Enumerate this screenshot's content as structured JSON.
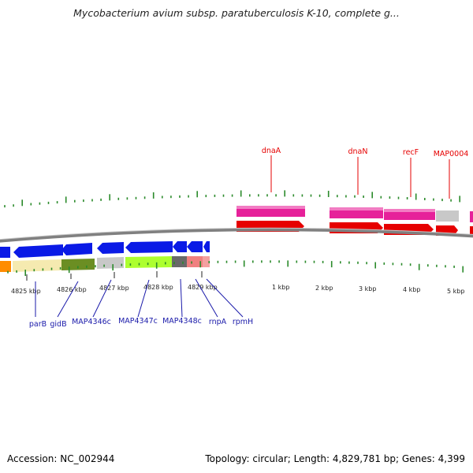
{
  "title": "Mycobacterium avium subsp. paratuberculosis K-10, complete g...",
  "footer": {
    "accession": "Accession: NC_002944",
    "summary": "Topology: circular; Length: 4,829,781 bp; Genes: 4,399"
  },
  "scale_labels": [
    "4825 kbp",
    "4826 kbp",
    "4827 kbp",
    "4828 kbp",
    "4829 kbp",
    "1 kbp",
    "2 kbp",
    "3 kbp",
    "4 kbp",
    "5 kbp"
  ],
  "genes_top": [
    {
      "name": "dnaA",
      "color": "#e60000"
    },
    {
      "name": "dnaN",
      "color": "#e60000"
    },
    {
      "name": "recF",
      "color": "#e60000"
    },
    {
      "name": "MAP0004",
      "color": "#e60000"
    }
  ],
  "genes_bottom": [
    {
      "name": "parB",
      "color": "#1a1aaa"
    },
    {
      "name": "gidB",
      "color": "#1a1aaa"
    },
    {
      "name": "MAP4346c",
      "color": "#1a1aaa"
    },
    {
      "name": "MAP4347c",
      "color": "#1a1aaa"
    },
    {
      "name": "MAP4348c",
      "color": "#1a1aaa"
    },
    {
      "name": "rnpA",
      "color": "#1a1aaa"
    },
    {
      "name": "rpmH",
      "color": "#1a1aaa"
    }
  ],
  "colors": {
    "tick_green": "#2a8a2a",
    "backbone": "#808080",
    "forward_gene": "#e60000",
    "reverse_gene": "#0a1ae6",
    "cog_magenta": "#e6219a"
  }
}
